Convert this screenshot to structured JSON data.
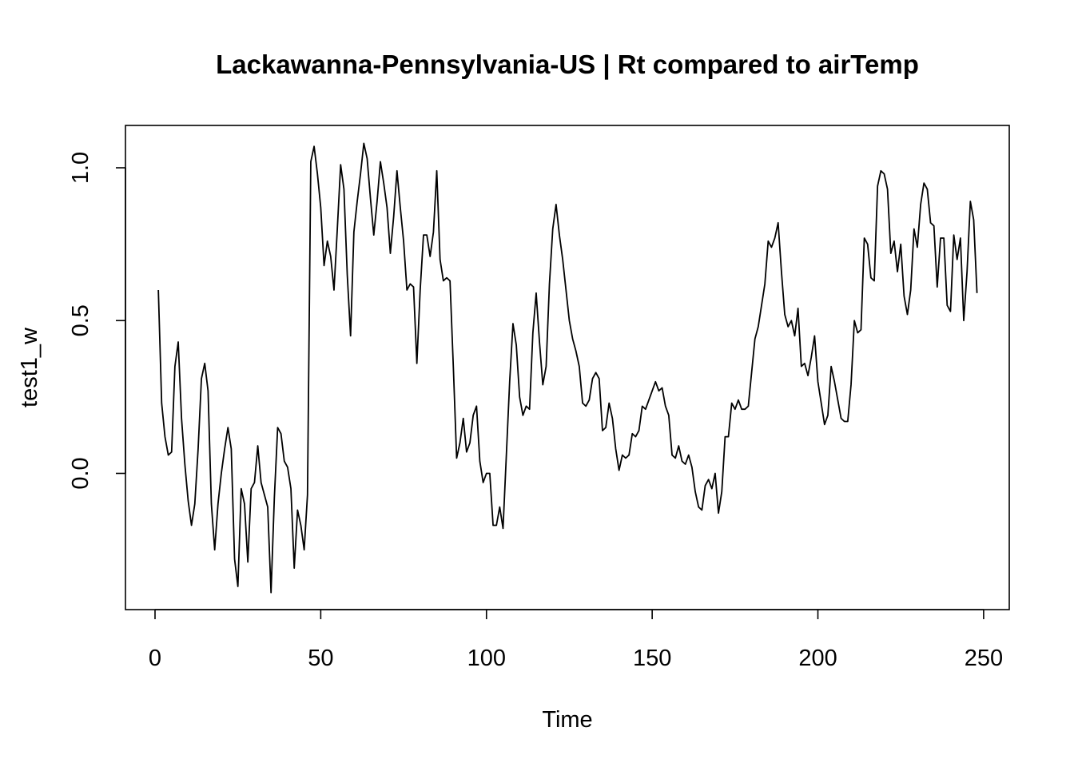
{
  "chart_data": {
    "type": "line",
    "title": "Lackawanna-Pennsylvania-US | Rt compared to airTemp",
    "xlabel": "Time",
    "ylabel": "test1_w",
    "xlim": [
      1,
      248
    ],
    "ylim": [
      -0.4,
      1.1
    ],
    "x_ticks": [
      0,
      50,
      100,
      150,
      200,
      250
    ],
    "x_tick_labels": [
      "0",
      "50",
      "100",
      "150",
      "200",
      "250"
    ],
    "y_ticks": [
      0.0,
      0.5,
      1.0
    ],
    "y_tick_labels": [
      "0.0",
      "0.5",
      "1.0"
    ],
    "grid": false,
    "legend": "none",
    "line_color": "#000000",
    "series": [
      {
        "x_start": 1,
        "x_step": 1,
        "values": [
          0.6,
          0.23,
          0.12,
          0.06,
          0.07,
          0.35,
          0.43,
          0.18,
          0.03,
          -0.09,
          -0.17,
          -0.1,
          0.08,
          0.31,
          0.36,
          0.27,
          -0.1,
          -0.25,
          -0.1,
          0.0,
          0.08,
          0.15,
          0.08,
          -0.28,
          -0.37,
          -0.05,
          -0.1,
          -0.29,
          -0.05,
          -0.03,
          0.09,
          -0.03,
          -0.07,
          -0.11,
          -0.39,
          -0.08,
          0.15,
          0.13,
          0.04,
          0.02,
          -0.05,
          -0.31,
          -0.12,
          -0.17,
          -0.25,
          -0.07,
          1.02,
          1.07,
          0.98,
          0.87,
          0.68,
          0.76,
          0.71,
          0.6,
          0.8,
          1.01,
          0.93,
          0.65,
          0.45,
          0.79,
          0.89,
          0.98,
          1.08,
          1.03,
          0.9,
          0.78,
          0.89,
          1.02,
          0.95,
          0.87,
          0.72,
          0.84,
          0.99,
          0.87,
          0.76,
          0.6,
          0.62,
          0.61,
          0.36,
          0.6,
          0.78,
          0.78,
          0.71,
          0.79,
          0.99,
          0.7,
          0.63,
          0.64,
          0.63,
          0.35,
          0.05,
          0.1,
          0.18,
          0.07,
          0.1,
          0.19,
          0.22,
          0.04,
          -0.03,
          0.0,
          0.0,
          -0.17,
          -0.17,
          -0.11,
          -0.18,
          0.06,
          0.3,
          0.49,
          0.42,
          0.25,
          0.19,
          0.22,
          0.21,
          0.46,
          0.59,
          0.43,
          0.29,
          0.35,
          0.62,
          0.8,
          0.88,
          0.78,
          0.7,
          0.6,
          0.5,
          0.44,
          0.4,
          0.35,
          0.23,
          0.22,
          0.24,
          0.31,
          0.33,
          0.31,
          0.14,
          0.15,
          0.23,
          0.18,
          0.08,
          0.01,
          0.06,
          0.05,
          0.06,
          0.13,
          0.12,
          0.14,
          0.22,
          0.21,
          0.24,
          0.27,
          0.3,
          0.27,
          0.28,
          0.22,
          0.19,
          0.06,
          0.05,
          0.09,
          0.04,
          0.03,
          0.06,
          0.02,
          -0.06,
          -0.11,
          -0.12,
          -0.04,
          -0.02,
          -0.05,
          0.0,
          -0.13,
          -0.06,
          0.12,
          0.12,
          0.23,
          0.21,
          0.24,
          0.21,
          0.21,
          0.22,
          0.33,
          0.44,
          0.48,
          0.55,
          0.62,
          0.76,
          0.74,
          0.77,
          0.82,
          0.66,
          0.52,
          0.48,
          0.5,
          0.45,
          0.54,
          0.35,
          0.36,
          0.32,
          0.38,
          0.45,
          0.3,
          0.23,
          0.16,
          0.19,
          0.35,
          0.3,
          0.24,
          0.18,
          0.17,
          0.17,
          0.29,
          0.5,
          0.46,
          0.47,
          0.77,
          0.75,
          0.64,
          0.63,
          0.94,
          0.99,
          0.98,
          0.93,
          0.72,
          0.76,
          0.66,
          0.75,
          0.58,
          0.52,
          0.6,
          0.8,
          0.74,
          0.88,
          0.95,
          0.93,
          0.82,
          0.81,
          0.61,
          0.77,
          0.77,
          0.55,
          0.53,
          0.78,
          0.7,
          0.77,
          0.5,
          0.66,
          0.89,
          0.83,
          0.59
        ]
      }
    ]
  }
}
